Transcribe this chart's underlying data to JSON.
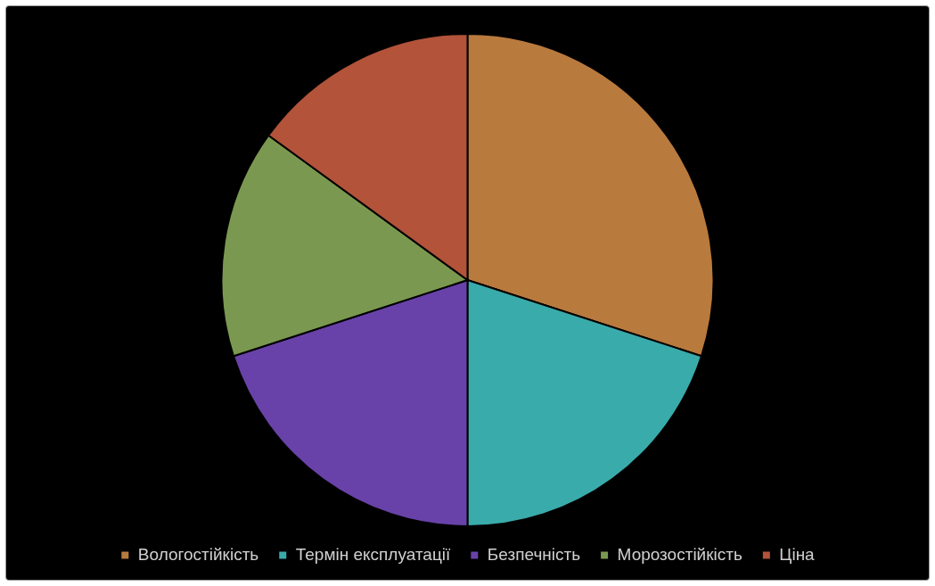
{
  "chart_data": {
    "type": "pie",
    "categories": [
      "Вологостійкість",
      "Термін експлуатації",
      "Безпечність",
      "Морозостійкість",
      "Ціна"
    ],
    "values": [
      30,
      20,
      20,
      15,
      15
    ],
    "colors": [
      "#b97a3e",
      "#3aabab",
      "#6842a8",
      "#7b9850",
      "#b2533a"
    ],
    "legend": "bottom"
  }
}
